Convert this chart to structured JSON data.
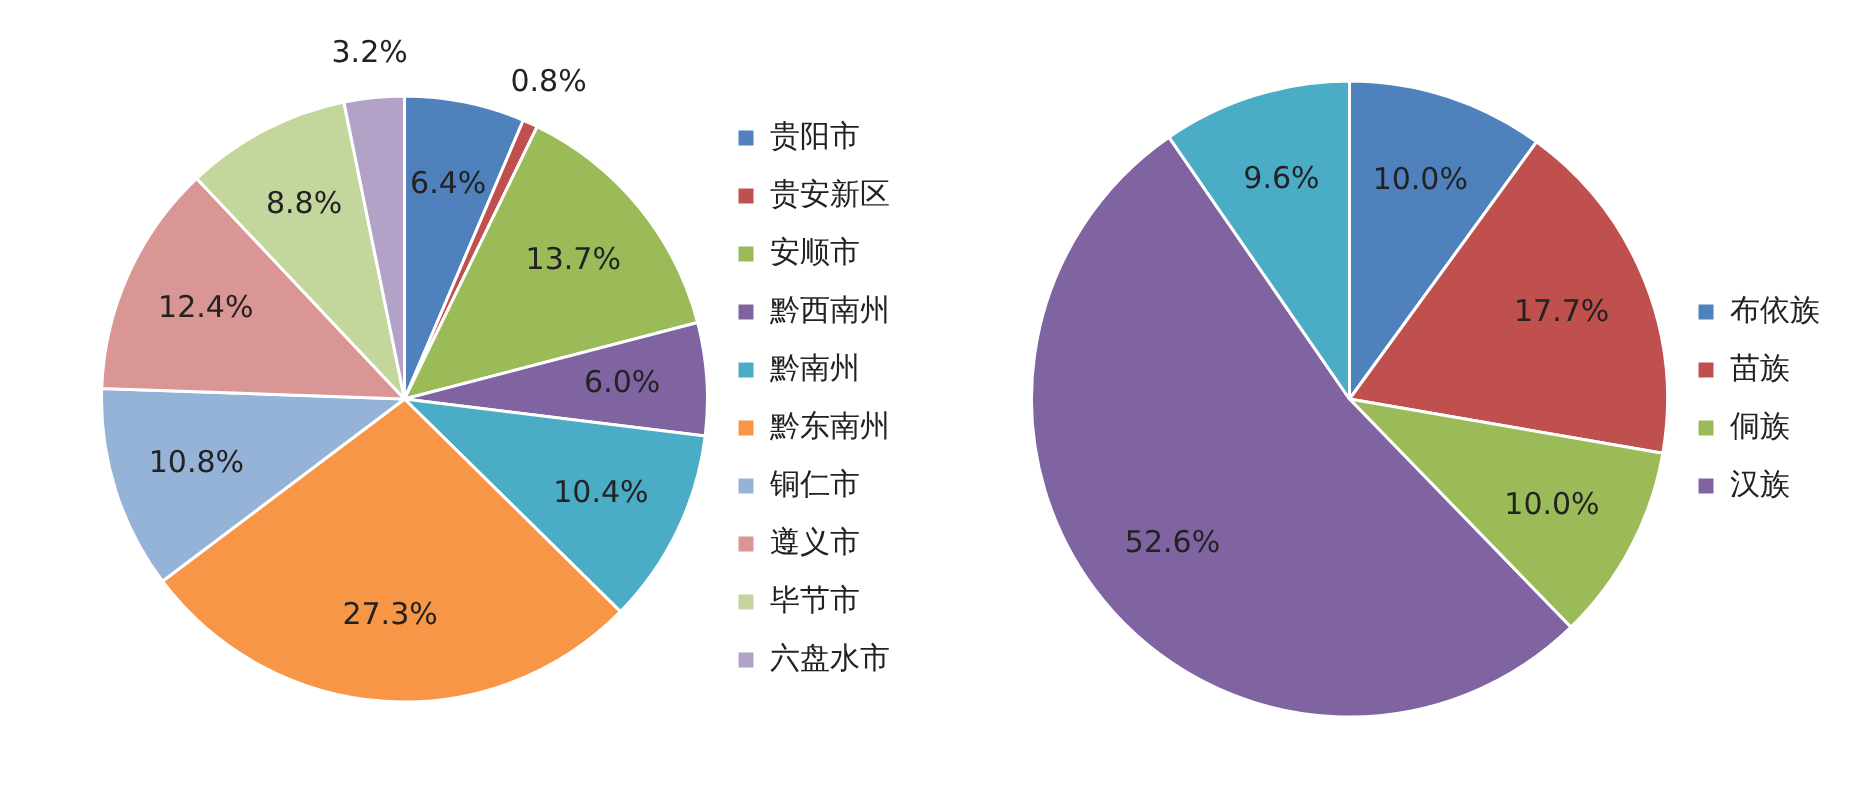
{
  "chart_data": [
    {
      "type": "pie",
      "categories": [
        "贵阳市",
        "贵安新区",
        "安顺市",
        "黔西南州",
        "黔南州",
        "黔东南州",
        "铜仁市",
        "遵义市",
        "毕节市",
        "六盘水市"
      ],
      "values": [
        6.4,
        0.8,
        13.7,
        6.0,
        10.4,
        27.3,
        10.8,
        12.4,
        8.8,
        3.2
      ],
      "colors": [
        "#4f81bd",
        "#c0504d",
        "#9bbb59",
        "#8064a2",
        "#4bacc6",
        "#f79646",
        "#95b3d7",
        "#d99694",
        "#c3d69b",
        "#b2a2c7"
      ],
      "value_labels": [
        "6.4%",
        "0.8%",
        "13.7%",
        "6.0%",
        "10.4%",
        "27.3%",
        "10.8%",
        "12.4%",
        "8.8%",
        "3.2%"
      ],
      "legend": "right"
    },
    {
      "type": "pie",
      "categories": [
        "布依族",
        "苗族",
        "侗族",
        "汉族",
        null
      ],
      "values": [
        10.0,
        17.7,
        10.0,
        52.6,
        9.6
      ],
      "colors": [
        "#4f81bd",
        "#c0504d",
        "#9bbb59",
        "#8064a2",
        "#4bacc6"
      ],
      "value_labels": [
        "10.0%",
        "17.7%",
        "10.0%",
        "52.6%",
        "9.6%"
      ],
      "legend": "right"
    }
  ]
}
